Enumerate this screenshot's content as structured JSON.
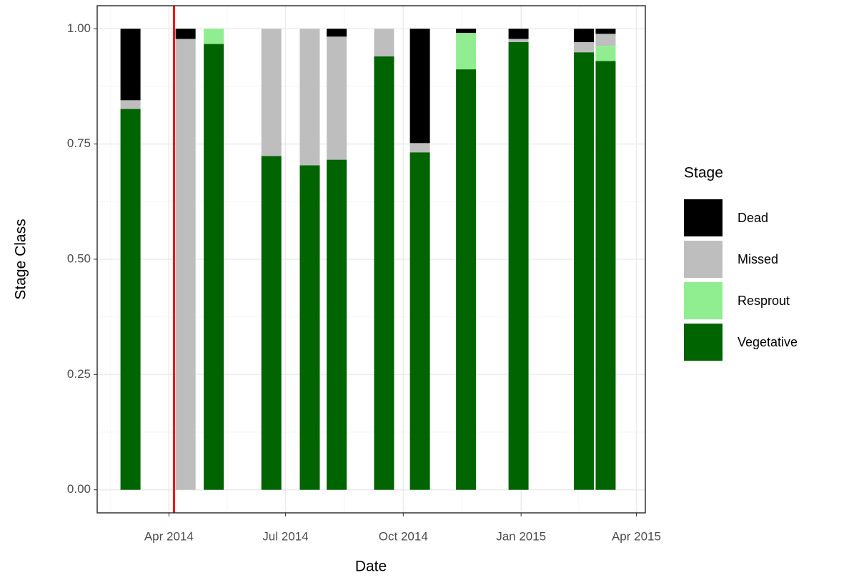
{
  "chart_data": {
    "type": "bar",
    "stacked": true,
    "x_axis_label": "Date",
    "y_axis_label": "Stage Class",
    "legend_title": "Stage",
    "legend": "right",
    "grid": true,
    "x": [
      "2014-03-02",
      "2014-04-14",
      "2014-05-06",
      "2014-06-20",
      "2014-07-20",
      "2014-08-10",
      "2014-09-16",
      "2014-10-14",
      "2014-11-19",
      "2014-12-30",
      "2015-02-19",
      "2015-03-08"
    ],
    "series": [
      {
        "name": "Dead",
        "color": "#000000",
        "values": [
          0.155,
          0.022,
          0,
          0,
          0,
          0.017,
          0,
          0.248,
          0.009,
          0.022,
          0.029,
          0.011
        ]
      },
      {
        "name": "Missed",
        "color": "#bebebe",
        "values": [
          0.019,
          0.978,
          0,
          0.276,
          0.296,
          0.267,
          0.06,
          0.02,
          0,
          0.007,
          0.022,
          0.026
        ]
      },
      {
        "name": "Resprout",
        "color": "#90ee90",
        "values": [
          0,
          0,
          0.033,
          0,
          0,
          0,
          0,
          0,
          0.079,
          0,
          0,
          0.033
        ]
      },
      {
        "name": "Vegetative",
        "color": "#006400",
        "values": [
          0.826,
          0,
          0.967,
          0.724,
          0.704,
          0.716,
          0.94,
          0.732,
          0.912,
          0.971,
          0.949,
          0.93
        ]
      }
    ],
    "vline": {
      "x": "2014-04-05",
      "color": "#ff0000"
    },
    "xlim": [
      "2014-02-04",
      "2015-04-08"
    ],
    "xticks": [
      {
        "value": "2014-04-01",
        "label": "Apr 2014"
      },
      {
        "value": "2014-07-01",
        "label": "Jul 2014"
      },
      {
        "value": "2014-10-01",
        "label": "Oct 2014"
      },
      {
        "value": "2015-01-01",
        "label": "Jan 2015"
      },
      {
        "value": "2015-04-01",
        "label": "Apr 2015"
      }
    ],
    "ylim": [
      -0.05,
      1.05
    ],
    "yticks": [
      {
        "value": 0,
        "label": "0.00"
      },
      {
        "value": 0.25,
        "label": "0.25"
      },
      {
        "value": 0.5,
        "label": "0.50"
      },
      {
        "value": 0.75,
        "label": "0.75"
      },
      {
        "value": 1,
        "label": "1.00"
      }
    ]
  }
}
